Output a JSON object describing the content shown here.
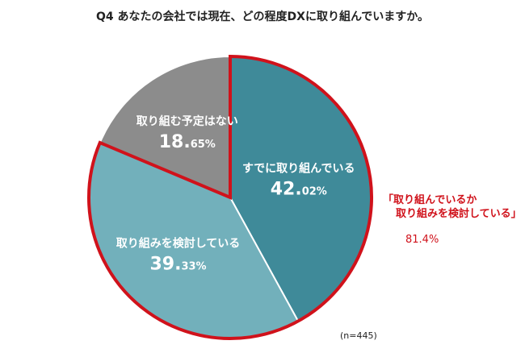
{
  "chart_data": {
    "type": "pie",
    "title": "Q4 あなたの会社では現在、どの程度DXに取り組んでいますか。",
    "slices": [
      {
        "label": "すでに取り組んでいる",
        "value": 42.02,
        "value_main": "42.",
        "value_decimal": "02%",
        "color": "#3f8a99",
        "highlighted": true
      },
      {
        "label": "取り組みを検討している",
        "value": 39.33,
        "value_main": "39.",
        "value_decimal": "33%",
        "color": "#72b0bb",
        "highlighted": true
      },
      {
        "label": "取り組む予定はない",
        "value": 18.65,
        "value_main": "18.",
        "value_decimal": "65%",
        "color": "#8c8c8c",
        "highlighted": false
      }
    ],
    "highlight_color": "#d0121b",
    "annotation": {
      "line1": "「取り組んでいるか",
      "line2": "取り組みを検討している」",
      "value": "81.4%"
    },
    "sample_size": "(n=445)"
  }
}
